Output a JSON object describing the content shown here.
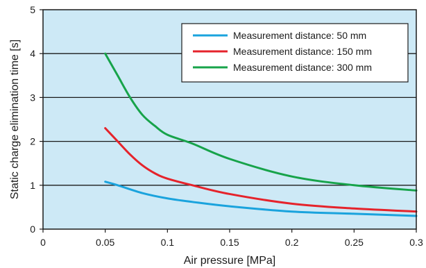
{
  "chart_data": {
    "type": "line",
    "xlabel": "Air pressure [MPa]",
    "ylabel": "Static charge elimination time [s]",
    "xlim": [
      0,
      0.3
    ],
    "ylim": [
      0,
      5
    ],
    "x_ticks": [
      "0",
      "0.05",
      "0.1",
      "0.15",
      "0.2",
      "0.25",
      "0.3"
    ],
    "y_ticks": [
      "0",
      "1",
      "2",
      "3",
      "4",
      "5"
    ],
    "grid": "horizontal",
    "legend_position": "top-right",
    "background_color": "#cde9f6",
    "series": [
      {
        "name": "Measurement distance: 50 mm",
        "color": "#1aa3dd",
        "x": [
          0.05,
          0.06,
          0.08,
          0.1,
          0.12,
          0.15,
          0.2,
          0.25,
          0.3
        ],
        "y": [
          1.08,
          1.0,
          0.82,
          0.7,
          0.62,
          0.52,
          0.4,
          0.35,
          0.3
        ]
      },
      {
        "name": "Measurement distance: 150 mm",
        "color": "#e5232b",
        "x": [
          0.05,
          0.06,
          0.07,
          0.08,
          0.09,
          0.1,
          0.12,
          0.15,
          0.2,
          0.25,
          0.3
        ],
        "y": [
          2.3,
          2.0,
          1.7,
          1.45,
          1.27,
          1.15,
          1.0,
          0.8,
          0.58,
          0.47,
          0.4
        ]
      },
      {
        "name": "Measurement distance: 300 mm",
        "color": "#17a34a",
        "x": [
          0.05,
          0.06,
          0.07,
          0.08,
          0.09,
          0.1,
          0.12,
          0.15,
          0.2,
          0.25,
          0.3
        ],
        "y": [
          4.0,
          3.5,
          3.0,
          2.6,
          2.35,
          2.15,
          1.95,
          1.6,
          1.2,
          1.0,
          0.88
        ]
      }
    ]
  }
}
